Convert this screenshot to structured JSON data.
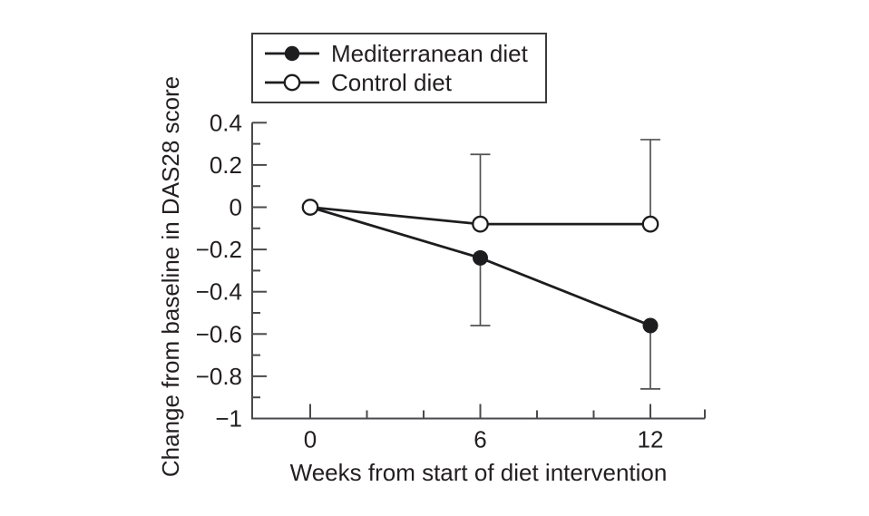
{
  "chart_data": {
    "type": "line",
    "title": "",
    "xlabel": "Weeks from start of diet intervention",
    "ylabel": "Change from baseline in DAS28 score",
    "x": [
      0,
      6,
      12
    ],
    "x_tick_labels": [
      "0",
      "6",
      "12"
    ],
    "x_minor_ticks": [
      2,
      4,
      8,
      10
    ],
    "xlim": [
      0,
      14
    ],
    "ylim": [
      -1,
      0.4
    ],
    "y_major_ticks": [
      0.4,
      0.2,
      0,
      -0.2,
      -0.4,
      -0.6,
      -0.8,
      -1
    ],
    "y_tick_labels": [
      "0.4",
      "0.2",
      "0",
      "−0.2",
      "−0.4",
      "−0.6",
      "−0.8",
      "−1"
    ],
    "y_minor_ticks": [
      0.3,
      0.1,
      -0.1,
      -0.3,
      -0.5,
      -0.7,
      -0.9
    ],
    "grid": false,
    "legend_position": "top",
    "series": [
      {
        "name": "Mediterranean diet",
        "marker": "filled-circle",
        "values": [
          0,
          -0.24,
          -0.56
        ],
        "show_marker": [
          false,
          true,
          true
        ],
        "whisker_direction": "down",
        "whisker_ends": [
          null,
          -0.56,
          -0.86
        ]
      },
      {
        "name": "Control diet",
        "marker": "open-circle",
        "values": [
          0,
          -0.08,
          -0.08
        ],
        "show_marker": [
          true,
          true,
          true
        ],
        "whisker_direction": "up",
        "whisker_ends": [
          null,
          0.25,
          0.32
        ]
      }
    ],
    "colors": {
      "line": "#1d1d1f",
      "axis": "#4a4a4c",
      "error_bar": "#525254",
      "text": "#231f20",
      "background": "#ffffff"
    }
  }
}
